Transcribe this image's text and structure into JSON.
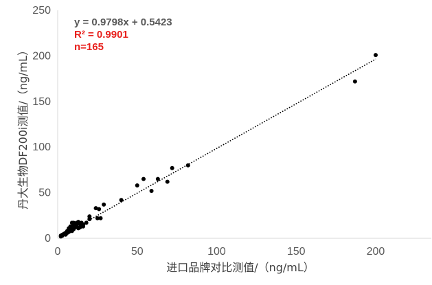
{
  "chart_data": {
    "type": "scatter",
    "xlabel": "进口品牌对比测值/（ng/mL）",
    "ylabel": "丹大生物DF200i测值/（ng/mL）",
    "xlim": [
      0,
      235
    ],
    "ylim": [
      0,
      250
    ],
    "x_ticks": [
      "0",
      "50",
      "100",
      "150",
      "200"
    ],
    "y_ticks": [
      "0",
      "50",
      "100",
      "150",
      "200",
      "250"
    ],
    "grid": false,
    "annotations": {
      "equation": "y = 0.9798x + 0.5423",
      "equation_color": "#595959",
      "r2_label": "R² = 0.9901",
      "r2_color": "#e8211d",
      "n_label": "n=165",
      "n_color": "#e8211d"
    },
    "trendline": {
      "slope": 0.9798,
      "intercept": 0.5423,
      "x_range": [
        1,
        200
      ],
      "style": "dotted",
      "color": "#000000"
    },
    "series": [
      {
        "marker_color": "#000000",
        "points": [
          [
            200,
            201
          ],
          [
            187,
            172
          ],
          [
            82,
            80
          ],
          [
            72,
            77
          ],
          [
            69,
            62
          ],
          [
            63,
            65
          ],
          [
            59,
            52
          ],
          [
            54,
            65
          ],
          [
            50,
            58
          ],
          [
            40,
            42
          ],
          [
            29,
            37
          ],
          [
            27,
            22
          ],
          [
            26,
            32
          ],
          [
            25,
            22
          ],
          [
            24,
            33
          ],
          [
            20,
            24
          ],
          [
            20,
            21
          ],
          [
            16,
            15
          ],
          [
            15,
            17
          ],
          [
            14,
            12
          ],
          [
            13,
            11
          ],
          [
            12,
            13
          ],
          [
            11,
            16
          ],
          [
            10,
            14
          ],
          [
            10,
            10
          ],
          [
            9,
            12
          ],
          [
            9,
            8
          ],
          [
            8,
            9
          ],
          [
            7,
            7
          ],
          [
            6,
            6
          ],
          [
            5,
            4
          ],
          [
            4,
            5
          ],
          [
            3,
            3
          ],
          [
            2,
            2
          ],
          [
            12,
            17
          ],
          [
            13,
            18
          ],
          [
            9,
            17
          ],
          [
            11,
            12
          ],
          [
            14,
            16
          ],
          [
            7,
            11
          ],
          [
            8,
            13
          ],
          [
            6,
            8
          ],
          [
            5,
            6
          ],
          [
            3,
            4
          ],
          [
            2,
            3
          ],
          [
            15,
            14
          ],
          [
            16,
            13
          ],
          [
            10,
            17
          ],
          [
            18,
            17
          ],
          [
            12,
            15
          ]
        ]
      }
    ]
  }
}
